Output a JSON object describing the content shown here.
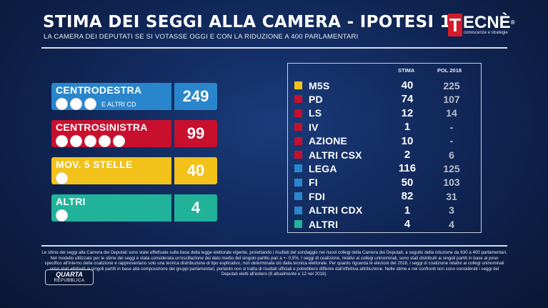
{
  "header": {
    "title": "STIMA DEI SEGGI ALLA CAMERA - IPOTESI 1",
    "subtitle": "LA CAMERA DEI DEPUTATI SE SI VOTASSE OGGI E CON LA RIDUZIONE A 400 PARLAMENTARI"
  },
  "logo": {
    "letter": "T",
    "rest": "ECNÈ",
    "reg": "®",
    "tagline": "conoscenze e strategie"
  },
  "coalitions": [
    {
      "name": "CENTRODESTRA",
      "seats": "249",
      "extra": "E ALTRI CD",
      "color": "#2a86cc",
      "val_color": "#2a86cc"
    },
    {
      "name": "CENTROSINISTRA",
      "seats": "99",
      "extra": "",
      "color": "#c8102e",
      "val_color": "#c8102e"
    },
    {
      "name": "MOV. 5 STELLE",
      "seats": "40",
      "extra": "",
      "color": "#f2c21b",
      "val_color": "#f2c21b"
    },
    {
      "name": "ALTRI",
      "seats": "4",
      "extra": "",
      "color": "#21b39a",
      "val_color": "#21b39a"
    }
  ],
  "table": {
    "col_stima": "STIMA",
    "col_pol": "POL 2018",
    "rows": [
      {
        "party": "M5S",
        "stima": "40",
        "pol": "225",
        "color": "#f2c21b"
      },
      {
        "party": "PD",
        "stima": "74",
        "pol": "107",
        "color": "#c8102e"
      },
      {
        "party": "LS",
        "stima": "12",
        "pol": "14",
        "color": "#c8102e"
      },
      {
        "party": "IV",
        "stima": "1",
        "pol": "-",
        "color": "#c8102e"
      },
      {
        "party": "AZIONE",
        "stima": "10",
        "pol": "-",
        "color": "#c8102e"
      },
      {
        "party": "ALTRI CSX",
        "stima": "2",
        "pol": "6",
        "color": "#c8102e"
      },
      {
        "party": "LEGA",
        "stima": "116",
        "pol": "125",
        "color": "#2a86cc"
      },
      {
        "party": "FI",
        "stima": "50",
        "pol": "103",
        "color": "#2a86cc"
      },
      {
        "party": "FDI",
        "stima": "82",
        "pol": "31",
        "color": "#2a86cc"
      },
      {
        "party": "ALTRI CDX",
        "stima": "1",
        "pol": "3",
        "color": "#2a86cc"
      },
      {
        "party": "ALTRI",
        "stima": "4",
        "pol": "4",
        "color": "#21b39a"
      }
    ]
  },
  "footnote": "Le stime dei seggi alla Camera dei Deputati sono state effettuate sulla base della legge elettorale vigente, proiettando i risultati del sondaggio nei nuovi collegi della Camera dei Deputati, a seguito della riduzione da 630 a 400 parlamentari. Nel modello utilizzato per le stime dei seggi è stata considerata un'oscillazione del dato medio del singolo partito pari a +- 0,5%. I seggi di coalizione, relativi ai collegi uninominali, sono stati distribuiti ai singoli partiti in base al peso specifico all'interno della coalizione e rappresentano solo una teorica distribuzione di tipo esplicativo, non determinata ciò dalla tecnica elettorale. Per quanto riguarda le elezioni del 2018, i seggi di coalizione relativi ai collegi uninominali sono stati attribuiti ai singoli partiti in base alla composizione dei gruppi parlamentari, pertanto non si tratta di risultati ufficiali e potrebbero differire dall'effettiva attribuzione. Nelle stime e nei confronti non sono considerati i seggi dei Deputati eletti all'estero (8 attualmente e 12 nel 2018).",
  "show": {
    "line1": "QUARTA",
    "line2": "REPUBBLICA"
  }
}
